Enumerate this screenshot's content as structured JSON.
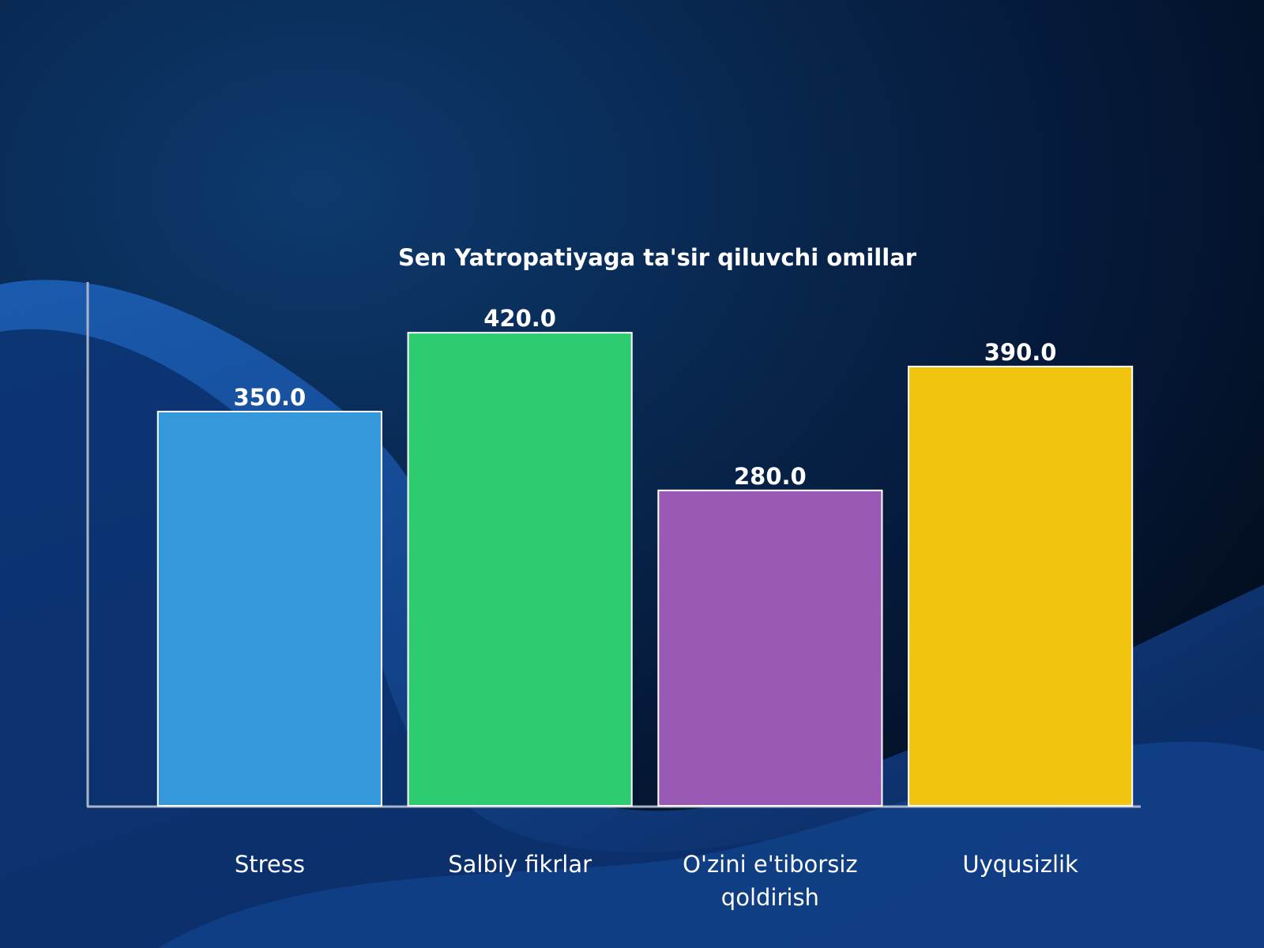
{
  "chart_data": {
    "type": "bar",
    "title": "Sen Yatropatiyaga ta'sir qiluvchi omillar",
    "categories": [
      "Stress",
      "Salbiy fikrlar",
      "O'zini e'tiborsiz qoldirish",
      "Uyqusizlik"
    ],
    "values": [
      350,
      420,
      280,
      390
    ],
    "value_labels": [
      "350.0",
      "420.0",
      "280.0",
      "390.0"
    ],
    "colors": [
      "#3498db",
      "#2ecc71",
      "#9b59b6",
      "#f1c40f"
    ],
    "ylim": [
      0,
      465
    ]
  }
}
